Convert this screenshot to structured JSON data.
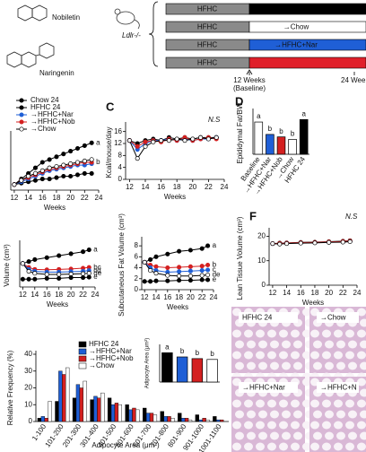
{
  "structures": {
    "labels": [
      "Nobiletin",
      "Naringenin"
    ]
  },
  "model": "Ldlr-/-",
  "timeline": {
    "rows": [
      {
        "diet": "HFHC",
        "switch_color": "#000000"
      },
      {
        "diet": "HFHC",
        "switch": "→Chow",
        "switch_color": "#ffffff"
      },
      {
        "diet": "HFHC",
        "switch": "→HFHC+Nar",
        "switch_color": "#1f5fd6"
      },
      {
        "diet": "HFHC",
        "switch_color": "#e0202a"
      }
    ],
    "start": "12 Weeks",
    "start_note": "(Baseline)",
    "end": "24 Wee"
  },
  "histology": {
    "panels": [
      "HFHC 24",
      "→Chow",
      "→HFHC+Nar",
      "→HFHC+N"
    ]
  },
  "chart_data": [
    {
      "type": "line",
      "xlabel": "Weeks",
      "x": [
        12,
        13,
        14,
        15,
        16,
        17,
        18,
        19,
        20,
        21,
        22,
        23
      ],
      "xlim": [
        11.5,
        24
      ],
      "xticks": [
        12,
        14,
        16,
        18,
        20,
        22,
        24
      ],
      "ylim": [
        -2,
        18
      ],
      "series": [
        {
          "name": "Chow 24",
          "color": "#000000",
          "marker_fill": "#000000",
          "values": [
            0,
            0.5,
            1,
            1.5,
            2,
            2,
            2.5,
            3,
            3,
            3.5,
            4,
            4
          ]
        },
        {
          "name": "HFHC 24",
          "color": "#000000",
          "marker_fill": "#000000",
          "values": [
            0,
            2,
            4,
            6,
            8,
            9,
            10,
            11,
            12,
            13,
            14,
            15
          ],
          "label": "a"
        },
        {
          "name": "→HFHC+Nar",
          "color": "#1f5fd6",
          "marker_fill": "#1f5fd6",
          "values": [
            0,
            1,
            2,
            3,
            4,
            5,
            5.5,
            6,
            6.5,
            7,
            7,
            7.5
          ]
        },
        {
          "name": "→HFHC+Nob",
          "color": "#d42020",
          "marker_fill": "#d42020",
          "values": [
            0,
            1.5,
            2.5,
            3.5,
            4.5,
            5.5,
            6,
            6.5,
            7,
            7.5,
            8,
            8
          ],
          "label": "b"
        },
        {
          "name": "→Chow",
          "color": "#000000",
          "marker_fill": "#ffffff",
          "values": [
            0,
            1.5,
            3,
            4,
            5,
            6,
            6.5,
            7,
            7.5,
            8,
            8.5,
            9
          ]
        }
      ]
    },
    {
      "type": "line",
      "panel": "C",
      "note": "N.S",
      "ylabel": "Kcal/mouse/day",
      "xlabel": "Weeks",
      "x": [
        12,
        13,
        14,
        15,
        16,
        17,
        18,
        19,
        20,
        21,
        22,
        23
      ],
      "xlim": [
        11.5,
        24
      ],
      "xticks": [
        12,
        14,
        16,
        18,
        20,
        22,
        24
      ],
      "ylim": [
        0,
        18
      ],
      "yticks": [
        0,
        4,
        8,
        12,
        16
      ],
      "series": [
        {
          "color": "#000000",
          "marker_fill": "#000000",
          "values": [
            13,
            12,
            13,
            13.5,
            13,
            14,
            13.5,
            14,
            13.5,
            14,
            14,
            14
          ]
        },
        {
          "color": "#1f5fd6",
          "marker_fill": "#1f5fd6",
          "values": [
            13,
            10,
            12,
            13,
            13,
            13.5,
            13,
            13.5,
            13,
            13.5,
            13.5,
            14
          ]
        },
        {
          "color": "#d42020",
          "marker_fill": "#d42020",
          "values": [
            13,
            11,
            12.5,
            13,
            12.5,
            13.5,
            13,
            14,
            13,
            13.5,
            14,
            13.5
          ]
        },
        {
          "color": "#000000",
          "marker_fill": "#ffffff",
          "values": [
            13,
            7,
            11,
            12.5,
            13,
            13,
            13.5,
            13,
            13.5,
            14,
            13.5,
            14
          ]
        }
      ]
    },
    {
      "type": "bar",
      "panel": "D",
      "ylabel": "Epididymal Fat/BW",
      "categories": [
        "Baseline",
        "→HFHC+Nar",
        "→HFHC+Nob",
        "→Chow",
        "HFHC 24"
      ],
      "values": [
        0.065,
        0.04,
        0.035,
        0.03,
        0.07
      ],
      "colors": [
        "#ffffff",
        "#1f5fd6",
        "#d42020",
        "#ffffff",
        "#000000"
      ],
      "letters": [
        "a",
        "b",
        "b",
        "b",
        "a"
      ],
      "ylim": [
        0,
        0.085
      ]
    },
    {
      "type": "line",
      "ylabel": "Volume (cm³)",
      "xlabel": "Weeks",
      "x": [
        12,
        13,
        14,
        16,
        18,
        20,
        22,
        23
      ],
      "xlim": [
        11.5,
        24
      ],
      "xticks": [
        12,
        14,
        16,
        18,
        20,
        22,
        24
      ],
      "ylim": [
        0,
        11
      ],
      "series": [
        {
          "color": "#000000",
          "marker_fill": "#000000",
          "values": [
            6,
            6.5,
            7,
            7.5,
            8,
            8.5,
            9,
            9.5
          ],
          "label": "a"
        },
        {
          "color": "#d42020",
          "marker_fill": "#d42020",
          "values": [
            6,
            5,
            4.5,
            4.4,
            4.5,
            4.6,
            4.8,
            5
          ],
          "label": "bc"
        },
        {
          "color": "#1f5fd6",
          "marker_fill": "#1f5fd6",
          "values": [
            6,
            4.5,
            4,
            3.8,
            3.8,
            3.9,
            4,
            4.2
          ],
          "label": "cd"
        },
        {
          "color": "#000000",
          "marker_fill": "#ffffff",
          "values": [
            6,
            4,
            3.5,
            3.2,
            3.2,
            3.3,
            3.4,
            3.5
          ],
          "label": "de"
        },
        {
          "color": "#000000",
          "marker_fill": "#000000",
          "values": [
            2,
            2,
            2,
            2.2,
            2.2,
            2.4,
            2.4,
            2.5
          ],
          "label": "e"
        }
      ]
    },
    {
      "type": "line",
      "ylabel": "Subcutaneous Fat Volume (cm³)",
      "xlabel": "Weeks",
      "x": [
        12,
        13,
        14,
        16,
        18,
        20,
        22,
        23
      ],
      "xlim": [
        11.5,
        24
      ],
      "xticks": [
        12,
        14,
        16,
        18,
        20,
        22,
        24
      ],
      "ylim": [
        0,
        9
      ],
      "yticks": [
        0,
        2,
        4,
        6,
        8
      ],
      "series": [
        {
          "color": "#000000",
          "marker_fill": "#000000",
          "values": [
            5,
            5.5,
            6,
            6.5,
            7,
            7.2,
            7.5,
            8
          ],
          "label": "a"
        },
        {
          "color": "#d42020",
          "marker_fill": "#d42020",
          "values": [
            5,
            4.5,
            4.2,
            4,
            4.1,
            4.2,
            4.3,
            4.5
          ],
          "label": "b"
        },
        {
          "color": "#1f5fd6",
          "marker_fill": "#1f5fd6",
          "values": [
            5,
            4,
            3.5,
            3.2,
            3.3,
            3.4,
            3.5,
            3.6
          ],
          "label": "c"
        },
        {
          "color": "#000000",
          "marker_fill": "#ffffff",
          "values": [
            5,
            3.5,
            3,
            2.6,
            2.5,
            2.5,
            2.6,
            2.7
          ],
          "label": "de"
        },
        {
          "color": "#000000",
          "marker_fill": "#000000",
          "values": [
            1.5,
            1.5,
            1.6,
            1.6,
            1.7,
            1.7,
            1.8,
            1.8
          ],
          "label": "e"
        }
      ]
    },
    {
      "type": "line",
      "panel": "F",
      "note": "N.S",
      "ylabel": "Lean Tissue Volume (cm³)",
      "xlabel": "Weeks",
      "x": [
        12,
        13,
        14,
        16,
        18,
        20,
        22,
        23
      ],
      "xlim": [
        11.5,
        24
      ],
      "xticks": [
        12,
        14,
        16,
        18,
        20,
        22,
        24
      ],
      "ylim": [
        0,
        22
      ],
      "yticks": [
        0,
        10,
        20
      ],
      "series": [
        {
          "color": "#000000",
          "marker_fill": "#000000",
          "values": [
            17,
            17.2,
            17.3,
            17.5,
            17.6,
            17.8,
            18,
            18.2
          ]
        },
        {
          "color": "#1f5fd6",
          "marker_fill": "#1f5fd6",
          "values": [
            17,
            17,
            17.2,
            17.3,
            17.4,
            17.6,
            17.8,
            18
          ]
        },
        {
          "color": "#d42020",
          "marker_fill": "#d42020",
          "values": [
            17,
            17.1,
            17.2,
            17.4,
            17.5,
            17.7,
            17.9,
            18.1
          ]
        },
        {
          "color": "#000000",
          "marker_fill": "#ffffff",
          "values": [
            17,
            16.8,
            17,
            17.2,
            17.3,
            17.5,
            17.6,
            17.8
          ]
        }
      ]
    },
    {
      "type": "grouped_bar",
      "ylabel": "Relative Frequency (%)",
      "xlabel": "Adipocyte Area (μm²)",
      "categories": [
        "1-100",
        "101-200",
        "201-300",
        "301-400",
        "401-500",
        "501-600",
        "601-700",
        "701-800",
        "801-900",
        "901-1000",
        "1001-1100"
      ],
      "ylim": [
        0,
        40
      ],
      "yticks": [
        0,
        10,
        20,
        30,
        40
      ],
      "series": [
        {
          "name": "HFHC 24",
          "color": "#000000",
          "values": [
            2,
            12,
            14,
            13,
            14,
            10,
            8,
            6,
            5,
            4,
            3
          ]
        },
        {
          "name": "→HFHC+Nar",
          "color": "#1f5fd6",
          "values": [
            3,
            30,
            22,
            15,
            10,
            7,
            5,
            3,
            2,
            1,
            1
          ]
        },
        {
          "name": "→HFHC+Nob",
          "color": "#d42020",
          "values": [
            2,
            28,
            20,
            14,
            11,
            8,
            5,
            3,
            2,
            2,
            1
          ]
        },
        {
          "name": "→Chow",
          "color": "#ffffff",
          "values": [
            12,
            32,
            24,
            17,
            10,
            7,
            4,
            2,
            1,
            1,
            0
          ]
        }
      ]
    },
    {
      "type": "inset_bar",
      "ylabel": "Adipocyte Area (μm²)",
      "values": [
        3500,
        3000,
        2800,
        2700
      ],
      "colors": [
        "#000000",
        "#1f5fd6",
        "#d42020",
        "#ffffff"
      ],
      "letters": [
        "a",
        "b",
        "b",
        "b"
      ],
      "ylim": [
        0,
        4500
      ]
    }
  ]
}
